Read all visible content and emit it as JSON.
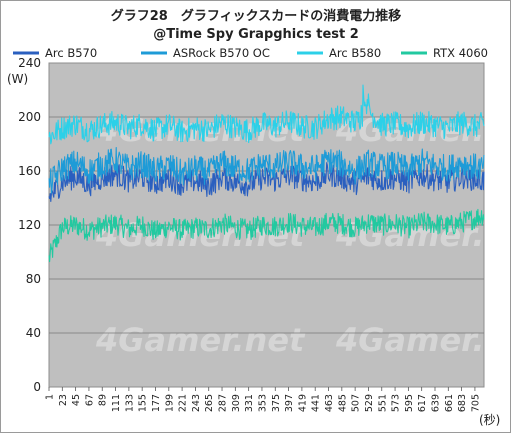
{
  "chart_data": {
    "type": "line",
    "title": "グラフ28　グラフィックスカードの消費電力推移",
    "subtitle": "@Time Spy Grapghics test 2",
    "ylabel": "(W)",
    "xlabel": "(秒)",
    "watermark": "4Gamer.net",
    "ylim": [
      0,
      240
    ],
    "yticks": [
      0,
      40,
      80,
      120,
      160,
      200,
      240
    ],
    "xlim": [
      1,
      720
    ],
    "xticks": [
      1,
      23,
      45,
      67,
      89,
      111,
      133,
      155,
      177,
      199,
      221,
      243,
      265,
      287,
      309,
      331,
      353,
      375,
      397,
      419,
      441,
      463,
      485,
      507,
      529,
      551,
      573,
      595,
      617,
      639,
      661,
      683,
      705
    ],
    "grid": true,
    "legend_position": "top",
    "plot_background": "#bfbfbf",
    "series": [
      {
        "name": "Arc B570",
        "color": "#2a5fbf",
        "x": [
          1,
          23,
          45,
          67,
          89,
          111,
          133,
          155,
          177,
          199,
          221,
          243,
          265,
          287,
          309,
          331,
          353,
          375,
          397,
          419,
          441,
          463,
          485,
          507,
          529,
          551,
          573,
          595,
          617,
          639,
          661,
          683,
          705,
          720
        ],
        "values": [
          140,
          152,
          156,
          150,
          155,
          158,
          153,
          156,
          151,
          155,
          150,
          153,
          149,
          156,
          152,
          150,
          155,
          153,
          157,
          154,
          152,
          158,
          155,
          151,
          156,
          153,
          155,
          152,
          157,
          154,
          152,
          156,
          154,
          153
        ]
      },
      {
        "name": "ASRock B570 OC",
        "color": "#1e9bd7",
        "x": [
          1,
          23,
          45,
          67,
          89,
          111,
          133,
          155,
          177,
          199,
          221,
          243,
          265,
          287,
          309,
          331,
          353,
          375,
          397,
          419,
          441,
          463,
          485,
          507,
          529,
          551,
          573,
          595,
          617,
          639,
          661,
          683,
          705,
          720
        ],
        "values": [
          150,
          162,
          166,
          160,
          165,
          168,
          162,
          165,
          160,
          164,
          158,
          162,
          159,
          166,
          162,
          160,
          165,
          163,
          167,
          163,
          162,
          168,
          165,
          160,
          166,
          163,
          165,
          161,
          167,
          164,
          162,
          166,
          163,
          162
        ]
      },
      {
        "name": "Arc B580",
        "color": "#2cd0e8",
        "x": [
          1,
          23,
          45,
          67,
          89,
          111,
          133,
          155,
          177,
          199,
          221,
          243,
          265,
          287,
          309,
          331,
          353,
          375,
          397,
          419,
          441,
          463,
          485,
          507,
          529,
          551,
          573,
          595,
          617,
          639,
          661,
          683,
          705,
          720
        ],
        "values": [
          185,
          192,
          195,
          190,
          194,
          196,
          192,
          195,
          190,
          194,
          189,
          192,
          190,
          196,
          192,
          190,
          195,
          193,
          197,
          193,
          192,
          199,
          200,
          196,
          205,
          194,
          195,
          192,
          196,
          194,
          192,
          196,
          193,
          195
        ]
      },
      {
        "name": "RTX 4060",
        "color": "#22c9a0",
        "x": [
          1,
          23,
          45,
          67,
          89,
          111,
          133,
          155,
          177,
          199,
          221,
          243,
          265,
          287,
          309,
          331,
          353,
          375,
          397,
          419,
          441,
          463,
          485,
          507,
          529,
          551,
          573,
          595,
          617,
          639,
          661,
          683,
          705,
          720
        ],
        "values": [
          95,
          118,
          120,
          116,
          119,
          121,
          117,
          120,
          115,
          119,
          116,
          118,
          117,
          121,
          118,
          116,
          120,
          119,
          122,
          119,
          118,
          122,
          121,
          118,
          122,
          120,
          121,
          118,
          122,
          121,
          119,
          122,
          125,
          128
        ]
      }
    ]
  }
}
